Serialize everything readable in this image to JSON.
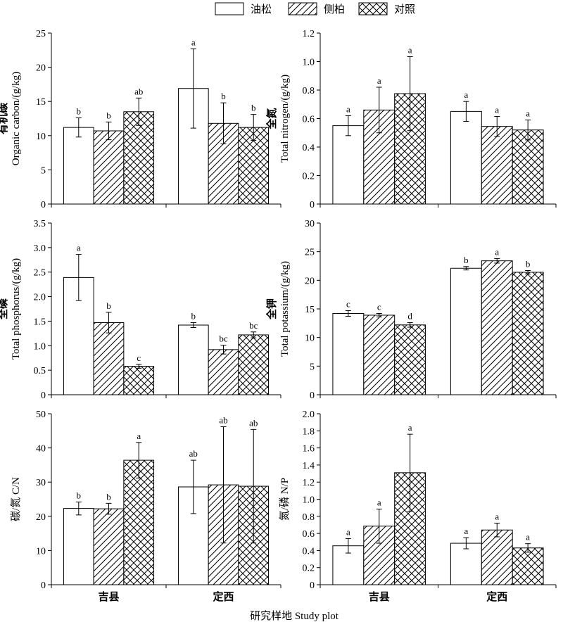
{
  "legend": {
    "items": [
      {
        "label": "油松",
        "pattern": "blank"
      },
      {
        "label": "侧柏",
        "pattern": "diagonal"
      },
      {
        "label": "对照",
        "pattern": "crosshatch"
      }
    ]
  },
  "xlabel": "研究样地 Study plot",
  "chart_data": [
    {
      "type": "bar",
      "categories": [
        "吉县",
        "定西"
      ],
      "ylabel_cn": "有机碳",
      "ylabel_en": "Organic carbon/(g/kg)",
      "ylim": [
        0,
        25
      ],
      "yticks": [
        "0",
        "5",
        "10",
        "15",
        "20",
        "25"
      ],
      "series": [
        {
          "name": "油松",
          "values": [
            11.2,
            16.9
          ],
          "errors": [
            1.4,
            5.8
          ],
          "letters": [
            "b",
            "a"
          ]
        },
        {
          "name": "侧柏",
          "values": [
            10.7,
            11.8
          ],
          "errors": [
            1.3,
            3.0
          ],
          "letters": [
            "b",
            "b"
          ]
        },
        {
          "name": "对照",
          "values": [
            13.5,
            11.2
          ],
          "errors": [
            2.0,
            1.9
          ],
          "letters": [
            "ab",
            "b"
          ]
        }
      ]
    },
    {
      "type": "bar",
      "categories": [
        "吉县",
        "定西"
      ],
      "ylabel_cn": "全氮",
      "ylabel_en": "Total nitrogen/(g/kg)",
      "ylim": [
        0,
        1.2
      ],
      "yticks": [
        "0",
        "0.2",
        "0.4",
        "0.6",
        "0.8",
        "1.0",
        "1.2"
      ],
      "series": [
        {
          "name": "油松",
          "values": [
            0.55,
            0.65
          ],
          "errors": [
            0.07,
            0.07
          ],
          "letters": [
            "a",
            "a"
          ]
        },
        {
          "name": "侧柏",
          "values": [
            0.66,
            0.545
          ],
          "errors": [
            0.16,
            0.07
          ],
          "letters": [
            "a",
            "a"
          ]
        },
        {
          "name": "对照",
          "values": [
            0.775,
            0.52
          ],
          "errors": [
            0.26,
            0.07
          ],
          "letters": [
            "a",
            "a"
          ]
        }
      ]
    },
    {
      "type": "bar",
      "categories": [
        "吉县",
        "定西"
      ],
      "ylabel_cn": "全磷",
      "ylabel_en": "Total phosphorus/(g/kg)",
      "ylim": [
        0,
        3.5
      ],
      "yticks": [
        "0",
        "0.5",
        "1.0",
        "1.5",
        "2.0",
        "2.5",
        "3.0",
        "3.5"
      ],
      "series": [
        {
          "name": "油松",
          "values": [
            2.39,
            1.42
          ],
          "errors": [
            0.47,
            0.05
          ],
          "letters": [
            "a",
            "b"
          ]
        },
        {
          "name": "侧柏",
          "values": [
            1.47,
            0.92
          ],
          "errors": [
            0.21,
            0.09
          ],
          "letters": [
            "b",
            "bc"
          ]
        },
        {
          "name": "对照",
          "values": [
            0.58,
            1.22
          ],
          "errors": [
            0.04,
            0.06
          ],
          "letters": [
            "c",
            "bc"
          ]
        }
      ]
    },
    {
      "type": "bar",
      "categories": [
        "吉县",
        "定西"
      ],
      "ylabel_cn": "全钾",
      "ylabel_en": "Total potassium/(g/kg)",
      "ylim": [
        0,
        30
      ],
      "yticks": [
        "0",
        "5",
        "10",
        "15",
        "20",
        "25",
        "30"
      ],
      "series": [
        {
          "name": "油松",
          "values": [
            14.2,
            22.1
          ],
          "errors": [
            0.5,
            0.3
          ],
          "letters": [
            "c",
            "b"
          ]
        },
        {
          "name": "侧柏",
          "values": [
            13.9,
            23.4
          ],
          "errors": [
            0.3,
            0.4
          ],
          "letters": [
            "c",
            "a"
          ]
        },
        {
          "name": "对照",
          "values": [
            12.2,
            21.4
          ],
          "errors": [
            0.4,
            0.3
          ],
          "letters": [
            "d",
            "b"
          ]
        }
      ]
    },
    {
      "type": "bar",
      "categories": [
        "吉县",
        "定西"
      ],
      "ylabel_cn": "碳/氮 C/N",
      "ylabel_en": "",
      "ylim": [
        0,
        50
      ],
      "yticks": [
        "0",
        "10",
        "20",
        "30",
        "40",
        "50"
      ],
      "series": [
        {
          "name": "油松",
          "values": [
            22.3,
            28.6
          ],
          "errors": [
            1.9,
            7.8
          ],
          "letters": [
            "b",
            "ab"
          ]
        },
        {
          "name": "侧柏",
          "values": [
            22.2,
            29.2
          ],
          "errors": [
            1.6,
            17.0
          ],
          "letters": [
            "b",
            "ab"
          ]
        },
        {
          "name": "对照",
          "values": [
            36.4,
            28.8
          ],
          "errors": [
            5.2,
            16.6
          ],
          "letters": [
            "a",
            "ab"
          ]
        }
      ]
    },
    {
      "type": "bar",
      "categories": [
        "吉县",
        "定西"
      ],
      "ylabel_cn": "氮/磷 N/P",
      "ylabel_en": "",
      "ylim": [
        0,
        2.0
      ],
      "yticks": [
        "0",
        "0.2",
        "0.4",
        "0.6",
        "0.8",
        "1.0",
        "1.2",
        "1.4",
        "1.6",
        "1.8",
        "2.0"
      ],
      "series": [
        {
          "name": "油松",
          "values": [
            0.455,
            0.485
          ],
          "errors": [
            0.085,
            0.065
          ],
          "letters": [
            "a",
            "a"
          ]
        },
        {
          "name": "侧柏",
          "values": [
            0.685,
            0.64
          ],
          "errors": [
            0.2,
            0.08
          ],
          "letters": [
            "a",
            "a"
          ]
        },
        {
          "name": "对照",
          "values": [
            1.31,
            0.43
          ],
          "errors": [
            0.45,
            0.05
          ],
          "letters": [
            "a",
            "a"
          ]
        }
      ]
    }
  ]
}
